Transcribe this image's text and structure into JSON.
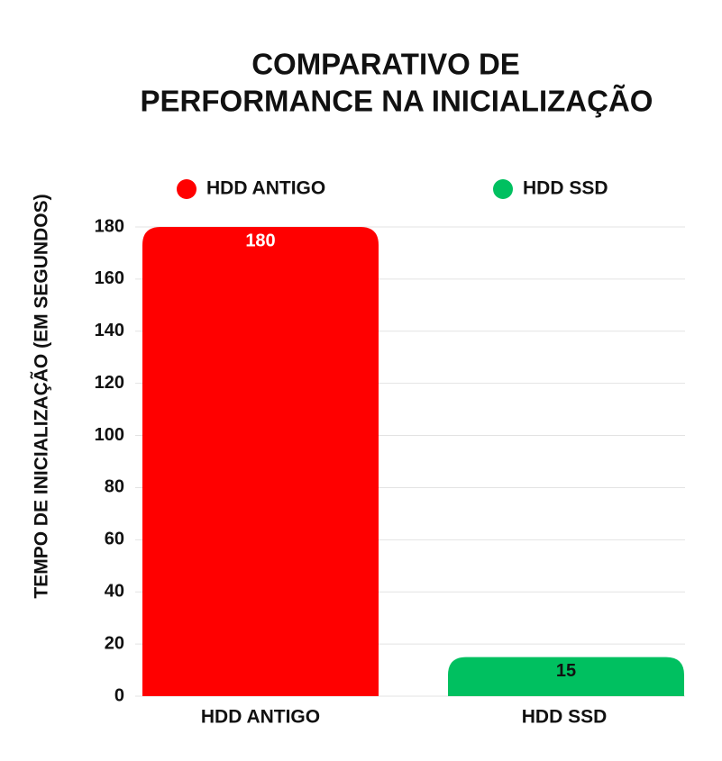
{
  "chart_data": {
    "type": "bar",
    "title": [
      "COMPARATIVO DE",
      "PERFORMANCE NA INICIALIZAÇÃO"
    ],
    "y_label": "TEMPO DE INICIALIZAÇÃO (EM SEGUNDOS)",
    "categories": [
      "HDD ANTIGO",
      "HDD SSD"
    ],
    "series": [
      {
        "name": "HDD ANTIGO",
        "color": "#ff0000",
        "values": [
          180,
          null
        ]
      },
      {
        "name": "HDD SSD",
        "color": "#00c060",
        "values": [
          null,
          15
        ]
      }
    ],
    "ylim": [
      0,
      180
    ],
    "yticks": [
      0,
      20,
      40,
      60,
      80,
      100,
      120,
      140,
      160,
      180
    ],
    "grid": true
  }
}
